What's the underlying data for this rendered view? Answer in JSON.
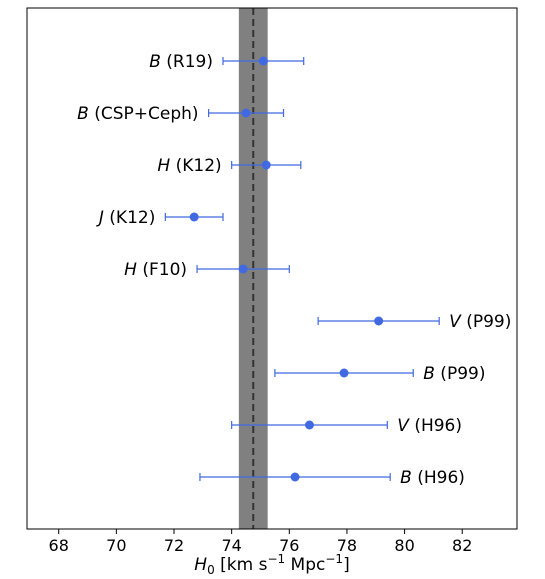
{
  "chart_data": {
    "type": "scatter",
    "title": "",
    "xlabel": {
      "symbol": "H",
      "subscript": "0",
      "unit_pre": " [km s",
      "sup1": "−1",
      "unit_mid": " Mpc",
      "sup2": "−1",
      "unit_post": "]"
    },
    "ylabel": "",
    "xlim": [
      66.9,
      83.9
    ],
    "xticks": [
      68,
      70,
      72,
      74,
      76,
      78,
      80,
      82
    ],
    "grid": false,
    "reference": {
      "value": 74.75,
      "band": [
        74.25,
        75.25
      ],
      "style": "dashed"
    },
    "colors": {
      "points": "#4169e1",
      "band": "#808080",
      "reference_line": "#333333"
    },
    "points": [
      {
        "band": "B",
        "ref": " (R19)",
        "x": 75.1,
        "xerr_low": 73.7,
        "xerr_high": 76.5,
        "label_side": "left"
      },
      {
        "band": "B",
        "ref": " (CSP+Ceph)",
        "x": 74.5,
        "xerr_low": 73.2,
        "xerr_high": 75.8,
        "label_side": "left"
      },
      {
        "band": "H",
        "ref": " (K12)",
        "x": 75.2,
        "xerr_low": 74.0,
        "xerr_high": 76.4,
        "label_side": "left"
      },
      {
        "band": "J",
        "ref": " (K12)",
        "x": 72.7,
        "xerr_low": 71.7,
        "xerr_high": 73.7,
        "label_side": "left"
      },
      {
        "band": "H",
        "ref": " (F10)",
        "x": 74.4,
        "xerr_low": 72.8,
        "xerr_high": 76.0,
        "label_side": "left"
      },
      {
        "band": "V",
        "ref": " (P99)",
        "x": 79.1,
        "xerr_low": 77.0,
        "xerr_high": 81.2,
        "label_side": "right"
      },
      {
        "band": "B",
        "ref": " (P99)",
        "x": 77.9,
        "xerr_low": 75.5,
        "xerr_high": 80.3,
        "label_side": "right"
      },
      {
        "band": "V",
        "ref": " (H96)",
        "x": 76.7,
        "xerr_low": 74.0,
        "xerr_high": 79.4,
        "label_side": "right"
      },
      {
        "band": "B",
        "ref": " (H96)",
        "x": 76.2,
        "xerr_low": 72.9,
        "xerr_high": 79.5,
        "label_side": "right"
      }
    ]
  }
}
